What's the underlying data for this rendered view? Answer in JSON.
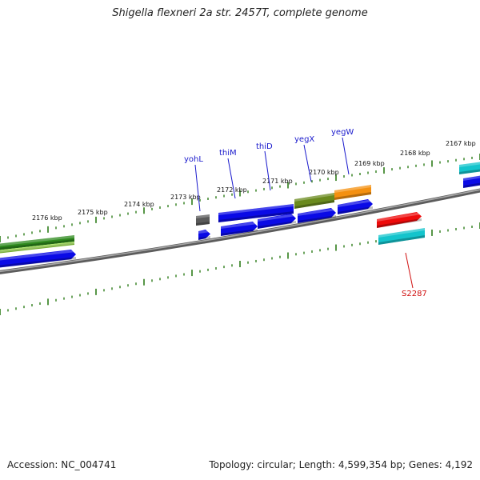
{
  "title": "Shigella flexneri 2a str. 2457T, complete genome",
  "footer": {
    "accession": "Accession: NC_004741",
    "summary": "Topology: circular; Length: 4,599,354 bp; Genes: 4,192"
  },
  "colors": {
    "backbone": "#808080",
    "tick": "#2e7d1a",
    "gene_label": "#1a1acc",
    "other_label": "#d01010",
    "cds": "#0a0ae6",
    "olive": "#6a8a1e",
    "orange": "#f49010",
    "red": "#ee0a0a",
    "teal": "#14c4cc",
    "grey": "#5a5a5a",
    "dkgreen": "#2e8a1e",
    "ltgreen": "#9ae640"
  },
  "ticks": [
    "2176 kbp",
    "2175 kbp",
    "2174 kbp",
    "2173 kbp",
    "2172 kbp",
    "2171 kbp",
    "2170 kbp",
    "2169 kbp",
    "2168 kbp",
    "2167 kbp"
  ],
  "gene_labels": [
    {
      "name": "yohL",
      "color": "gene_label"
    },
    {
      "name": "thiM",
      "color": "gene_label"
    },
    {
      "name": "thiD",
      "color": "gene_label"
    },
    {
      "name": "yegX",
      "color": "gene_label"
    },
    {
      "name": "yegW",
      "color": "gene_label"
    },
    {
      "name": "S2287",
      "color": "other_label"
    }
  ]
}
